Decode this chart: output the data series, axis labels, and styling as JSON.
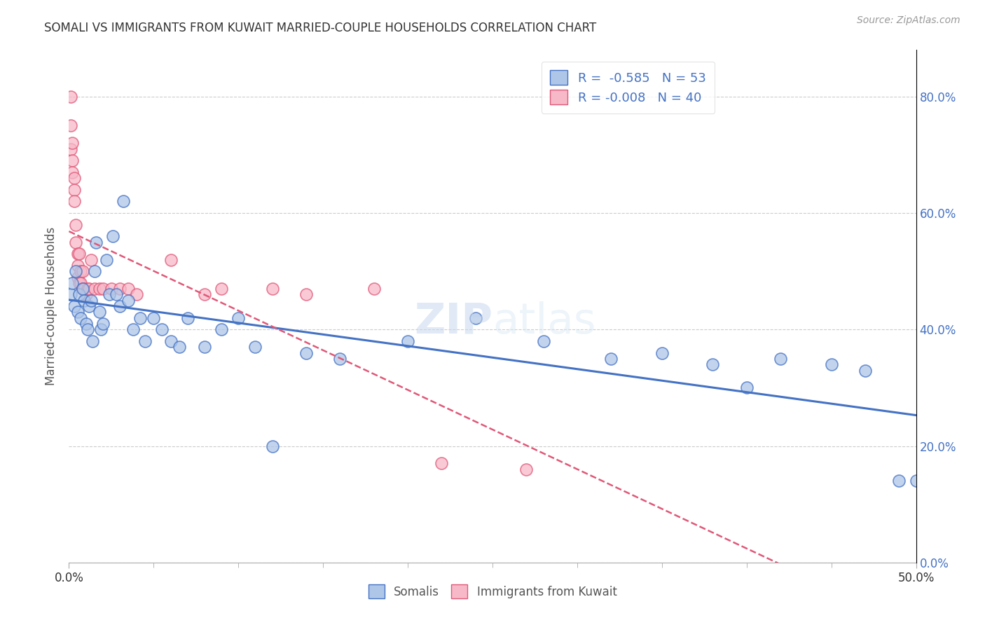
{
  "title": "SOMALI VS IMMIGRANTS FROM KUWAIT MARRIED-COUPLE HOUSEHOLDS CORRELATION CHART",
  "source": "Source: ZipAtlas.com",
  "xlabel_somali": "Somalis",
  "xlabel_kuwait": "Immigrants from Kuwait",
  "ylabel": "Married-couple Households",
  "r_somali": -0.585,
  "n_somali": 53,
  "r_kuwait": -0.008,
  "n_kuwait": 40,
  "color_somali": "#aec6e8",
  "color_kuwait": "#f7b8c8",
  "color_line_somali": "#4472c4",
  "color_line_kuwait": "#e05878",
  "watermark_zip": "ZIP",
  "watermark_atlas": "atlas",
  "xlim": [
    0.0,
    0.5
  ],
  "ylim": [
    0.0,
    0.88
  ],
  "ytick_vals": [
    0.0,
    0.2,
    0.4,
    0.6,
    0.8
  ],
  "somali_x": [
    0.001,
    0.002,
    0.003,
    0.004,
    0.005,
    0.006,
    0.007,
    0.008,
    0.009,
    0.01,
    0.011,
    0.012,
    0.013,
    0.014,
    0.015,
    0.016,
    0.018,
    0.019,
    0.02,
    0.022,
    0.024,
    0.026,
    0.028,
    0.03,
    0.032,
    0.035,
    0.038,
    0.042,
    0.045,
    0.05,
    0.055,
    0.06,
    0.065,
    0.07,
    0.08,
    0.09,
    0.1,
    0.11,
    0.12,
    0.14,
    0.16,
    0.2,
    0.24,
    0.28,
    0.32,
    0.35,
    0.38,
    0.4,
    0.42,
    0.45,
    0.47,
    0.49,
    0.5
  ],
  "somali_y": [
    0.46,
    0.48,
    0.44,
    0.5,
    0.43,
    0.46,
    0.42,
    0.47,
    0.45,
    0.41,
    0.4,
    0.44,
    0.45,
    0.38,
    0.5,
    0.55,
    0.43,
    0.4,
    0.41,
    0.52,
    0.46,
    0.56,
    0.46,
    0.44,
    0.62,
    0.45,
    0.4,
    0.42,
    0.38,
    0.42,
    0.4,
    0.38,
    0.37,
    0.42,
    0.37,
    0.4,
    0.42,
    0.37,
    0.2,
    0.36,
    0.35,
    0.38,
    0.42,
    0.38,
    0.35,
    0.36,
    0.34,
    0.3,
    0.35,
    0.34,
    0.33,
    0.14,
    0.14
  ],
  "kuwait_x": [
    0.001,
    0.001,
    0.001,
    0.002,
    0.002,
    0.002,
    0.003,
    0.003,
    0.003,
    0.004,
    0.004,
    0.005,
    0.005,
    0.005,
    0.006,
    0.006,
    0.007,
    0.007,
    0.008,
    0.008,
    0.009,
    0.01,
    0.011,
    0.012,
    0.013,
    0.015,
    0.018,
    0.02,
    0.025,
    0.03,
    0.035,
    0.04,
    0.06,
    0.08,
    0.09,
    0.12,
    0.14,
    0.18,
    0.22,
    0.27
  ],
  "kuwait_y": [
    0.8,
    0.75,
    0.71,
    0.72,
    0.69,
    0.67,
    0.66,
    0.64,
    0.62,
    0.58,
    0.55,
    0.53,
    0.51,
    0.49,
    0.53,
    0.48,
    0.5,
    0.48,
    0.5,
    0.47,
    0.47,
    0.46,
    0.47,
    0.47,
    0.52,
    0.47,
    0.47,
    0.47,
    0.47,
    0.47,
    0.47,
    0.46,
    0.52,
    0.46,
    0.47,
    0.47,
    0.46,
    0.47,
    0.17,
    0.16
  ]
}
